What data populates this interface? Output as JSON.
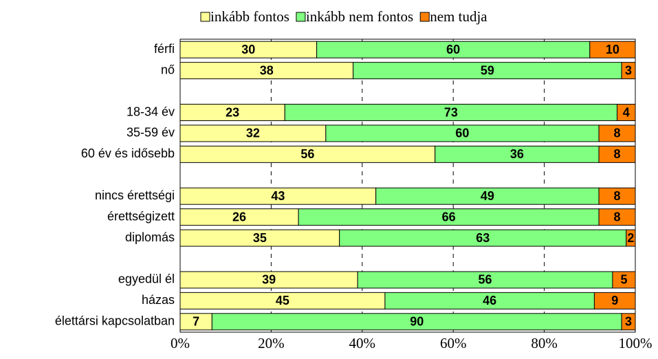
{
  "chart_data": {
    "type": "stacked_bar_horizontal",
    "categories": [
      "férfi",
      "nő",
      null,
      "18-34 év",
      "35-59 év",
      "60 év és idősebb",
      null,
      "nincs érettségi",
      "érettségizett",
      "diplomás",
      null,
      "egyedül él",
      "házas",
      "élettársi kapcsolatban"
    ],
    "series": [
      {
        "name": "inkább fontos",
        "color": "#ffff99",
        "values": [
          30,
          38,
          null,
          23,
          32,
          56,
          null,
          43,
          26,
          35,
          null,
          39,
          45,
          7
        ]
      },
      {
        "name": "inkább nem fontos",
        "color": "#80ff80",
        "values": [
          60,
          59,
          null,
          73,
          60,
          36,
          null,
          49,
          66,
          63,
          null,
          56,
          46,
          90
        ]
      },
      {
        "name": "nem tudja",
        "color": "#ff8000",
        "values": [
          10,
          3,
          null,
          4,
          8,
          8,
          null,
          8,
          8,
          2,
          null,
          5,
          9,
          3
        ]
      }
    ],
    "xlim": [
      0,
      100
    ],
    "xticks": [
      {
        "value": 0,
        "label": "0%"
      },
      {
        "value": 20,
        "label": "20%"
      },
      {
        "value": 40,
        "label": "40%"
      },
      {
        "value": 60,
        "label": "60%"
      },
      {
        "value": 80,
        "label": "80%"
      },
      {
        "value": 100,
        "label": "100%"
      }
    ],
    "grid": true,
    "legend": "top"
  }
}
